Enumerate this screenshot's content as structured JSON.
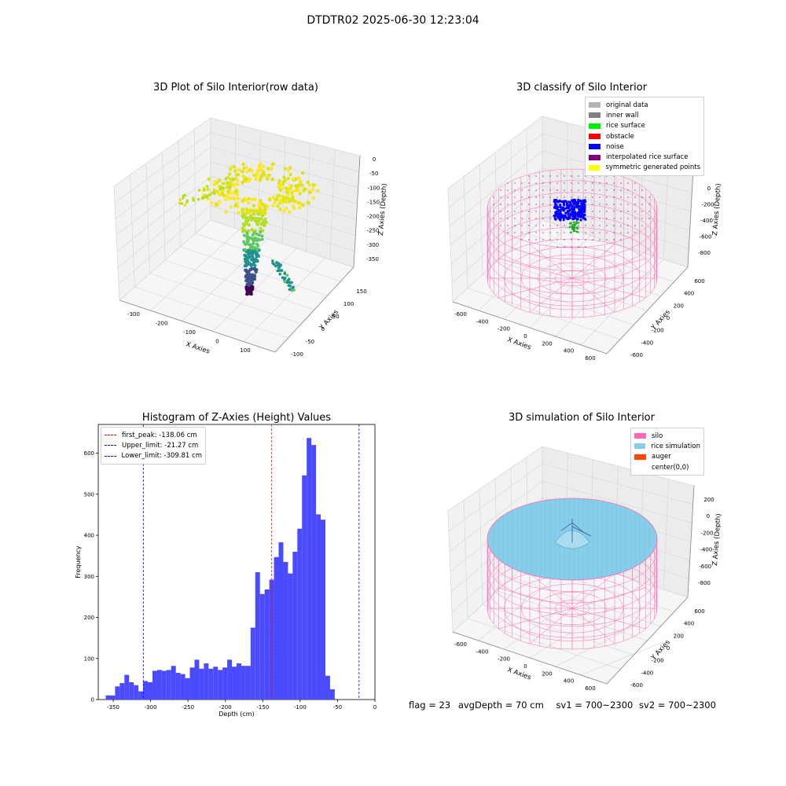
{
  "suptitle": "DTDTR02 2025-06-30 12:23:04",
  "panels": {
    "raw": {
      "title": "3D Plot of Silo Interior(row data)",
      "xlabel": "X Axies",
      "ylabel": "Y Axies",
      "zlabel": "Z Axies (Depth)",
      "xticks": [
        "-300",
        "-200",
        "-100",
        "0",
        "100"
      ],
      "yticks": [
        "-100",
        "-50",
        "0",
        "50",
        "100",
        "150"
      ],
      "zticks": [
        "0",
        "-50",
        "-100",
        "-150",
        "-200",
        "-250",
        "-300",
        "-350"
      ]
    },
    "classify": {
      "title": "3D classify of Silo Interior",
      "xlabel": "X Axies",
      "ylabel": "Y Axies",
      "zlabel": "Z Axies (Depth)",
      "xticks": [
        "-600",
        "-400",
        "-200",
        "0",
        "200",
        "400",
        "600"
      ],
      "yticks": [
        "-600",
        "-400",
        "-200",
        "0",
        "200",
        "400",
        "600"
      ],
      "zticks": [
        "0",
        "-200",
        "-400",
        "-600",
        "-800"
      ],
      "legend": [
        {
          "label": "original data",
          "color": "#b4b4b4"
        },
        {
          "label": "inner wall",
          "color": "#808080"
        },
        {
          "label": "rice surface",
          "color": "#00ee00"
        },
        {
          "label": "obstacle",
          "color": "#ff0000"
        },
        {
          "label": "noise",
          "color": "#0000ff"
        },
        {
          "label": "interpolated rice surface",
          "color": "#800080"
        },
        {
          "label": "symmetric generated points",
          "color": "#ffff00"
        }
      ]
    },
    "simulation": {
      "title": "3D simulation of Silo Interior",
      "xlabel": "X Axies",
      "ylabel": "Y Axies",
      "zlabel": "Z Axies (Depth)",
      "xticks": [
        "-600",
        "-400",
        "-200",
        "0",
        "200",
        "400",
        "600"
      ],
      "yticks": [
        "-600",
        "-400",
        "-200",
        "0",
        "200",
        "400",
        "600"
      ],
      "zticks": [
        "200",
        "0",
        "-200",
        "-400",
        "-600",
        "-800"
      ],
      "legend": [
        {
          "label": "silo",
          "color": "#ff69b4"
        },
        {
          "label": "rice simulation",
          "color": "#87ceeb"
        },
        {
          "label": "auger",
          "color": "#ff4500"
        },
        {
          "label": "center(0,0)",
          "color": "#ffffff"
        }
      ]
    }
  },
  "status": {
    "flag": "flag = 23",
    "avg": "avgDepth = 70 cm",
    "sv1": "sv1 = 700~2300",
    "sv2": "sv2 = 700~2300"
  },
  "chart_data": [
    {
      "type": "histogram",
      "title": "Histogram of Z-Axies (Height) Values",
      "xlabel": "Depth (cm)",
      "ylabel": "Frequency",
      "xlim": [
        -370,
        0
      ],
      "ylim": [
        0,
        670
      ],
      "xticks": [
        -350,
        -300,
        -250,
        -200,
        -150,
        -100,
        -50,
        0
      ],
      "yticks": [
        0,
        100,
        200,
        300,
        400,
        500,
        600
      ],
      "bin_start": -360,
      "bin_width": 6.25,
      "bar_color": "#4a4aff",
      "counts": [
        10,
        10,
        32,
        40,
        60,
        42,
        35,
        20,
        45,
        42,
        70,
        72,
        70,
        72,
        82,
        65,
        62,
        52,
        78,
        97,
        75,
        88,
        75,
        80,
        72,
        78,
        97,
        80,
        88,
        82,
        82,
        175,
        310,
        257,
        268,
        292,
        347,
        383,
        335,
        307,
        360,
        416,
        546,
        637,
        620,
        451,
        438,
        58,
        25
      ],
      "vlines": [
        {
          "label": "first_peak: -138.06 cm",
          "x": -138.06,
          "color": "#ff0000"
        },
        {
          "label": "Upper_limit: -21.27 cm",
          "x": -21.27,
          "color": "#0000ff"
        },
        {
          "label": "Lower_limit: -309.81 cm",
          "x": -309.81,
          "color": "#0000ff"
        }
      ]
    }
  ]
}
